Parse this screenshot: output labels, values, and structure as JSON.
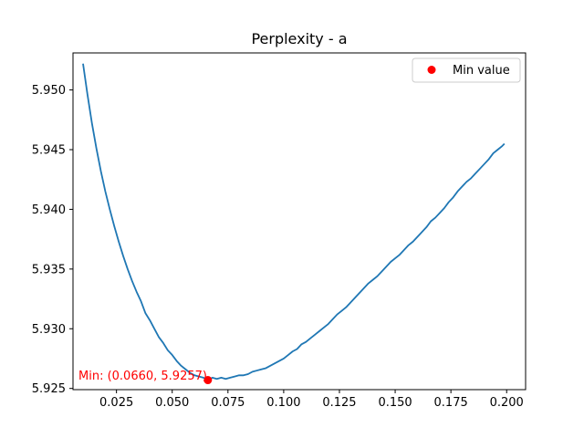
{
  "chart_data": {
    "type": "line",
    "title": "Perplexity - a",
    "xlabel": "",
    "ylabel": "",
    "xlim": [
      0.0055,
      0.2085
    ],
    "ylim": [
      5.9249,
      5.9531
    ],
    "x_ticks": [
      0.025,
      0.05,
      0.075,
      0.1,
      0.125,
      0.15,
      0.175,
      0.2
    ],
    "x_tick_labels": [
      "0.025",
      "0.050",
      "0.075",
      "0.100",
      "0.125",
      "0.150",
      "0.175",
      "0.200"
    ],
    "y_ticks": [
      5.925,
      5.93,
      5.935,
      5.94,
      5.945,
      5.95
    ],
    "y_tick_labels": [
      "5.925",
      "5.930",
      "5.935",
      "5.940",
      "5.945",
      "5.950"
    ],
    "grid": false,
    "legend_position": "top-right",
    "series": [
      {
        "color": "#1f77b4",
        "x": [
          0.01,
          0.012,
          0.014,
          0.016,
          0.018,
          0.02,
          0.022,
          0.024,
          0.026,
          0.028,
          0.03,
          0.032,
          0.034,
          0.036,
          0.038,
          0.04,
          0.042,
          0.044,
          0.046,
          0.048,
          0.05,
          0.052,
          0.054,
          0.056,
          0.058,
          0.06,
          0.062,
          0.064,
          0.066,
          0.068,
          0.07,
          0.072,
          0.074,
          0.076,
          0.078,
          0.08,
          0.082,
          0.084,
          0.086,
          0.088,
          0.09,
          0.092,
          0.094,
          0.096,
          0.098,
          0.1,
          0.102,
          0.104,
          0.106,
          0.108,
          0.11,
          0.112,
          0.114,
          0.116,
          0.118,
          0.12,
          0.122,
          0.124,
          0.126,
          0.128,
          0.13,
          0.132,
          0.134,
          0.136,
          0.138,
          0.14,
          0.142,
          0.144,
          0.146,
          0.148,
          0.15,
          0.152,
          0.154,
          0.156,
          0.158,
          0.16,
          0.162,
          0.164,
          0.166,
          0.168,
          0.17,
          0.172,
          0.174,
          0.176,
          0.178,
          0.18,
          0.182,
          0.184,
          0.186,
          0.188,
          0.19,
          0.192,
          0.194,
          0.196,
          0.198,
          0.199
        ],
        "y": [
          5.9522,
          5.9496,
          5.9472,
          5.9451,
          5.9432,
          5.9415,
          5.94,
          5.9386,
          5.9373,
          5.9361,
          5.935,
          5.934,
          5.9331,
          5.9323,
          5.9313,
          5.9307,
          5.93,
          5.9293,
          5.9288,
          5.9282,
          5.9278,
          5.9273,
          5.9269,
          5.9266,
          5.9263,
          5.9261,
          5.926,
          5.9259,
          5.9257,
          5.9259,
          5.9258,
          5.9259,
          5.9258,
          5.9259,
          5.926,
          5.9261,
          5.9261,
          5.9262,
          5.9264,
          5.9265,
          5.9266,
          5.9267,
          5.9269,
          5.9271,
          5.9273,
          5.9275,
          5.9278,
          5.9281,
          5.9283,
          5.9287,
          5.9289,
          5.9292,
          5.9295,
          5.9298,
          5.9301,
          5.9304,
          5.9308,
          5.9312,
          5.9315,
          5.9318,
          5.9322,
          5.9326,
          5.933,
          5.9334,
          5.9338,
          5.9341,
          5.9344,
          5.9348,
          5.9352,
          5.9356,
          5.9359,
          5.9362,
          5.9366,
          5.937,
          5.9373,
          5.9377,
          5.9381,
          5.9385,
          5.939,
          5.9393,
          5.9397,
          5.9401,
          5.9406,
          5.941,
          5.9415,
          5.9419,
          5.9423,
          5.9426,
          5.943,
          5.9434,
          5.9438,
          5.9442,
          5.9447,
          5.945,
          5.9453,
          5.9455
        ]
      }
    ],
    "min_point": {
      "x": 0.066,
      "y": 5.9257,
      "color": "#ff0000",
      "legend_label": "Min value",
      "annotation": "Min: (0.0660, 5.9257)"
    }
  }
}
